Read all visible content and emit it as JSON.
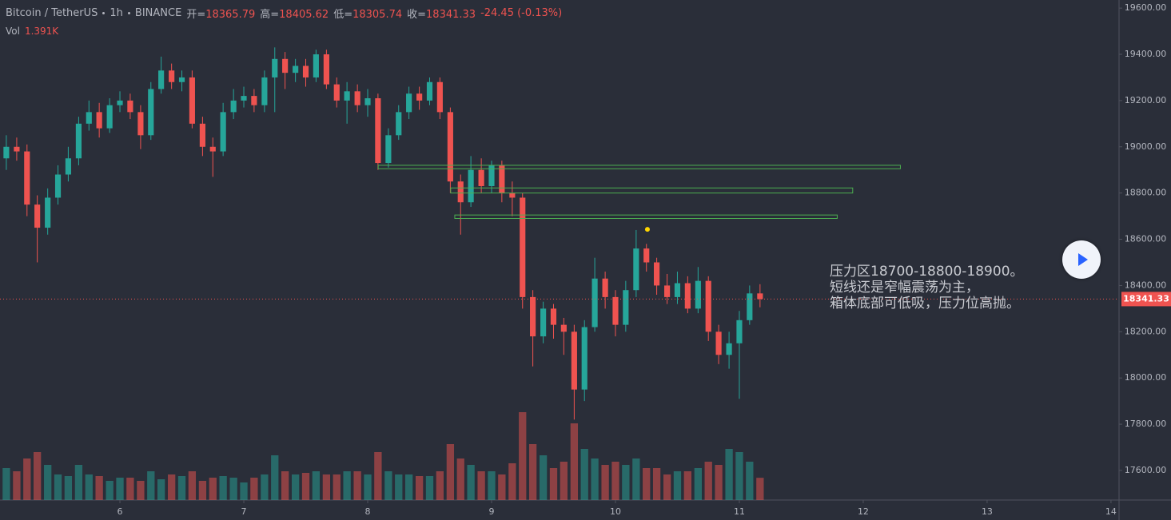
{
  "header": {
    "symbol": "Bitcoin / TetherUS",
    "interval": "1h",
    "exchange": "BINANCE",
    "ohlc": [
      {
        "label": "开=",
        "value": 18365.79
      },
      {
        "label": "高=",
        "value": 18405.62
      },
      {
        "label": "低=",
        "value": 18305.74
      },
      {
        "label": "收=",
        "value": 18341.33
      }
    ],
    "change": "-24.45 (-0.13%)",
    "volume": {
      "label": "Vol",
      "value": "1.391K"
    }
  },
  "chart_data": {
    "type": "candlestick",
    "x": [
      5.083,
      5.167,
      5.25,
      5.333,
      5.417,
      5.5,
      5.583,
      5.667,
      5.75,
      5.833,
      5.917,
      6.0,
      6.083,
      6.167,
      6.25,
      6.333,
      6.417,
      6.5,
      6.583,
      6.667,
      6.75,
      6.833,
      6.917,
      7.0,
      7.083,
      7.167,
      7.25,
      7.333,
      7.417,
      7.5,
      7.583,
      7.667,
      7.75,
      7.833,
      7.917,
      8.0,
      8.083,
      8.167,
      8.25,
      8.333,
      8.417,
      8.5,
      8.583,
      8.667,
      8.75,
      8.833,
      8.917,
      9.0,
      9.083,
      9.167,
      9.25,
      9.333,
      9.417,
      9.5,
      9.583,
      9.667,
      9.75,
      9.833,
      9.917,
      10.0,
      10.083,
      10.167,
      10.25,
      10.333,
      10.417,
      10.5,
      10.583,
      10.667,
      10.75,
      10.833,
      10.917,
      11.0,
      11.083,
      11.167
    ],
    "open": [
      18950,
      19000,
      18980,
      18750,
      18650,
      18780,
      18880,
      18950,
      19100,
      19150,
      19080,
      19180,
      19200,
      19150,
      19050,
      19250,
      19330,
      19280,
      19300,
      19100,
      19000,
      18980,
      19150,
      19200,
      19220,
      19180,
      19300,
      19380,
      19320,
      19350,
      19300,
      19400,
      19270,
      19200,
      19240,
      19180,
      19210,
      18930,
      19050,
      19150,
      19230,
      19200,
      19280,
      19150,
      18850,
      18760,
      18900,
      18830,
      18920,
      18800,
      18780,
      18350,
      18180,
      18300,
      18230,
      18200,
      17950,
      18220,
      18430,
      18350,
      18230,
      18380,
      18560,
      18500,
      18400,
      18350,
      18410,
      18300,
      18420,
      18200,
      18100,
      18150,
      18250,
      18365.79
    ],
    "high": [
      19050,
      19040,
      19010,
      18790,
      18820,
      18920,
      19000,
      19130,
      19200,
      19190,
      19210,
      19240,
      19230,
      19180,
      19280,
      19390,
      19360,
      19330,
      19330,
      19130,
      19040,
      19190,
      19250,
      19260,
      19250,
      19330,
      19430,
      19410,
      19380,
      19380,
      19420,
      19420,
      19300,
      19280,
      19270,
      19250,
      19230,
      19080,
      19180,
      19260,
      19260,
      19300,
      19300,
      19170,
      18880,
      18960,
      18950,
      18940,
      18940,
      18850,
      18800,
      18380,
      18330,
      18320,
      18260,
      18230,
      18250,
      18520,
      18460,
      18380,
      18420,
      18640,
      18580,
      18520,
      18450,
      18460,
      18440,
      18480,
      18440,
      18230,
      18200,
      18290,
      18400,
      18405.62
    ],
    "low": [
      18900,
      18940,
      18700,
      18500,
      18620,
      18750,
      18850,
      18920,
      19070,
      19040,
      19060,
      19150,
      19120,
      18990,
      19030,
      19230,
      19250,
      19240,
      19080,
      18960,
      18870,
      18960,
      19120,
      19170,
      19150,
      19150,
      19150,
      19250,
      19280,
      19260,
      19280,
      19250,
      19170,
      19100,
      19150,
      19130,
      18900,
      18910,
      19030,
      19120,
      19160,
      19180,
      19120,
      18800,
      18620,
      18740,
      18800,
      18800,
      18760,
      18700,
      18300,
      18050,
      18150,
      18170,
      18100,
      17820,
      17900,
      18200,
      18300,
      18180,
      18200,
      18350,
      18460,
      18360,
      18320,
      18320,
      18280,
      18280,
      18160,
      18060,
      18040,
      17910,
      18230,
      18305.74
    ],
    "close": [
      19000,
      18980,
      18750,
      18650,
      18780,
      18880,
      18950,
      19100,
      19150,
      19080,
      19180,
      19200,
      19150,
      19050,
      19250,
      19330,
      19280,
      19300,
      19100,
      19000,
      18980,
      19150,
      19200,
      19220,
      19180,
      19300,
      19380,
      19320,
      19350,
      19300,
      19400,
      19270,
      19200,
      19240,
      19180,
      19210,
      18930,
      19050,
      19150,
      19230,
      19200,
      19280,
      19150,
      18850,
      18760,
      18900,
      18830,
      18920,
      18800,
      18780,
      18350,
      18180,
      18300,
      18230,
      18200,
      17950,
      18220,
      18430,
      18350,
      18230,
      18380,
      18560,
      18500,
      18400,
      18350,
      18410,
      18300,
      18420,
      18200,
      18100,
      18150,
      18250,
      18365.79,
      18341.33
    ],
    "volume": {
      "values": [
        2.0,
        1.8,
        2.6,
        3.0,
        2.2,
        1.6,
        1.5,
        2.2,
        1.6,
        1.5,
        1.2,
        1.4,
        1.4,
        1.2,
        1.8,
        1.3,
        1.6,
        1.5,
        1.8,
        1.2,
        1.4,
        1.5,
        1.4,
        1.1,
        1.4,
        1.6,
        2.8,
        1.8,
        1.6,
        1.7,
        1.8,
        1.6,
        1.6,
        1.8,
        1.8,
        1.6,
        3.0,
        1.8,
        1.6,
        1.6,
        1.5,
        1.5,
        1.8,
        3.5,
        2.6,
        2.2,
        1.8,
        1.8,
        1.6,
        2.3,
        5.5,
        3.5,
        2.8,
        2.0,
        2.4,
        4.8,
        3.2,
        2.6,
        2.2,
        2.4,
        2.2,
        2.6,
        2.0,
        2.0,
        1.6,
        1.8,
        1.8,
        2.0,
        2.4,
        2.2,
        3.2,
        3.0,
        2.4,
        1.391
      ],
      "ylim": [
        0,
        7
      ]
    },
    "up_color": "#26a69a",
    "down_color": "#ef5350",
    "xlim": [
      5.032,
      14.065
    ],
    "xticks": [
      6,
      7,
      8,
      9,
      10,
      11,
      12,
      13,
      14
    ],
    "ylim": [
      17472,
      19635
    ],
    "yticks": [
      {
        "value": 17600,
        "label": "17600.00"
      },
      {
        "value": 17800,
        "label": "17800.00"
      },
      {
        "value": 18000,
        "label": "18000.00"
      },
      {
        "value": 18200,
        "label": "18200.00"
      },
      {
        "value": 18400,
        "label": "18400.00"
      },
      {
        "value": 18600,
        "label": "18600.00"
      },
      {
        "value": 18800,
        "label": "18800.00"
      },
      {
        "value": 19000,
        "label": "19000.00"
      },
      {
        "value": 19200,
        "label": "19200.00"
      },
      {
        "value": 19400,
        "label": "19400.00"
      },
      {
        "value": 19600,
        "label": "19600.00"
      }
    ],
    "zones": [
      {
        "x": [
          8.085,
          12.3
        ],
        "y": [
          18905,
          18920
        ],
        "color": "#4caf50"
      },
      {
        "x": [
          8.67,
          11.915
        ],
        "y": [
          18800,
          18822
        ],
        "color": "#4caf50"
      },
      {
        "x": [
          8.703,
          11.79
        ],
        "y": [
          18690,
          18705
        ],
        "color": "#4caf50"
      }
    ],
    "marker": {
      "x": 10.258,
      "y": 18643,
      "color": "#ffd600"
    },
    "annotation": [
      "压力区18700-18800-18900。",
      "短线还是窄幅震荡为主，",
      "箱体底部可低吸，压力位高抛。"
    ]
  }
}
